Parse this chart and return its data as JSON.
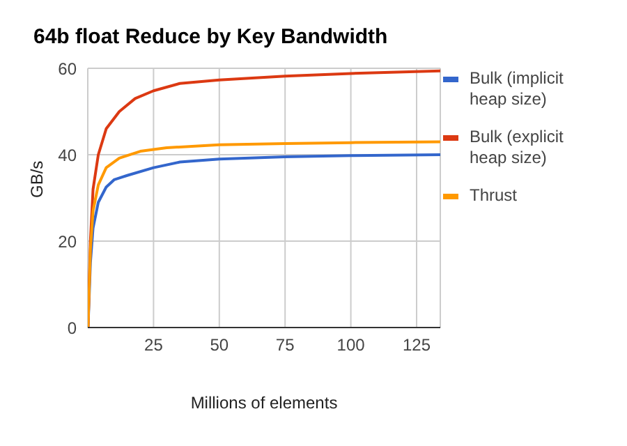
{
  "chart_data": {
    "type": "line",
    "title": "64b float Reduce by Key Bandwidth",
    "xlabel": "Millions of elements",
    "ylabel": "GB/s",
    "xlim": [
      0,
      134
    ],
    "xticks": [
      25,
      50,
      75,
      100,
      125
    ],
    "ylim": [
      0,
      60
    ],
    "yticks": [
      0,
      20,
      40,
      60
    ],
    "grid": true,
    "legend": "right",
    "marker": "none",
    "line_style": "solid",
    "series": [
      {
        "name": "Bulk (implicit heap size)",
        "color": "#3366cc",
        "x": [
          0.1,
          1,
          2,
          4,
          7,
          10,
          15,
          25,
          35,
          50,
          75,
          100,
          134
        ],
        "values": [
          0,
          15,
          23,
          29,
          32.5,
          34.2,
          35.2,
          37,
          38.3,
          39,
          39.5,
          39.8,
          40
        ]
      },
      {
        "name": "Bulk (explicit heap size)",
        "color": "#dc3912",
        "x": [
          0.1,
          1,
          2,
          4,
          7,
          12,
          18,
          25,
          35,
          50,
          75,
          100,
          134
        ],
        "values": [
          0,
          20,
          32,
          40,
          46,
          50,
          53,
          54.8,
          56.5,
          57.3,
          58.2,
          58.8,
          59.4
        ]
      },
      {
        "name": "Thrust",
        "color": "#ff9900",
        "x": [
          0.1,
          1,
          2,
          4,
          7,
          12,
          20,
          30,
          50,
          75,
          100,
          134
        ],
        "values": [
          0,
          18,
          27,
          33,
          37,
          39.2,
          40.8,
          41.6,
          42.3,
          42.6,
          42.8,
          43
        ]
      }
    ]
  }
}
